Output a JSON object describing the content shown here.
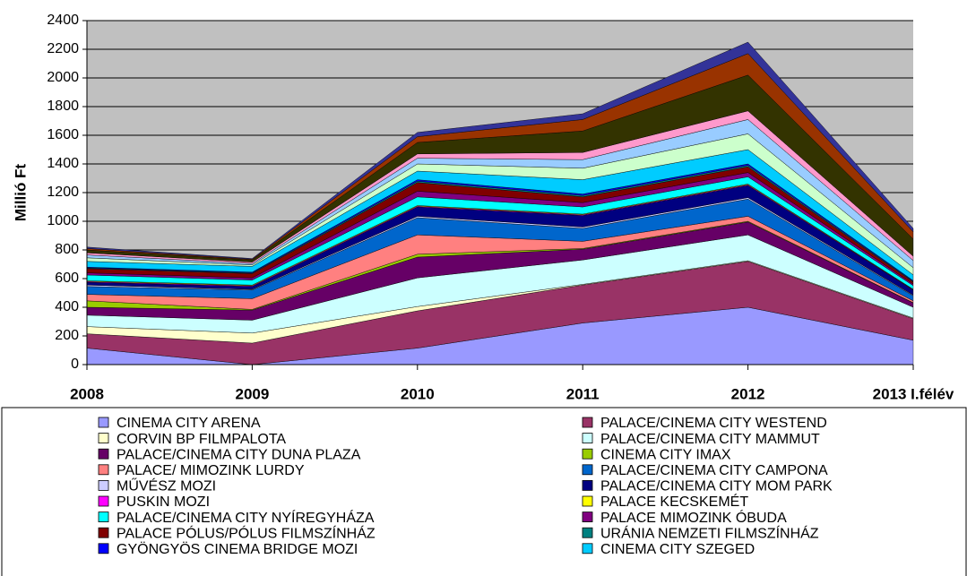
{
  "chart_data": {
    "type": "stacked_area",
    "y_label": "Millió Ft",
    "categories": [
      "2008",
      "2009",
      "2010",
      "2011",
      "2012",
      "2013 I.félév"
    ],
    "ylim": [
      0,
      2400
    ],
    "yticks": [
      0,
      200,
      400,
      600,
      800,
      1000,
      1200,
      1400,
      1600,
      1800,
      2000,
      2200,
      2400
    ],
    "grid": true,
    "series": [
      {
        "name": "CINEMA CITY ARENA",
        "color": "#9999ff",
        "values": [
          115,
          0,
          115,
          290,
          400,
          170
        ]
      },
      {
        "name": "PALACE/CINEMA CITY WESTEND",
        "color": "#993366",
        "values": [
          100,
          150,
          260,
          265,
          320,
          150
        ]
      },
      {
        "name": "CORVIN BP FILMPALOTA",
        "color": "#ffffcc",
        "values": [
          50,
          70,
          30,
          5,
          5,
          5
        ]
      },
      {
        "name": "PALACE/CINEMA CITY MAMMUT",
        "color": "#ccffff",
        "values": [
          80,
          90,
          200,
          170,
          180,
          75
        ]
      },
      {
        "name": "PALACE/CINEMA CITY DUNA PLAZA",
        "color": "#660066",
        "values": [
          55,
          70,
          145,
          75,
          90,
          30
        ]
      },
      {
        "name": "CINEMA CITY IMAX",
        "color": "#99cc00",
        "values": [
          45,
          5,
          20,
          5,
          5,
          2
        ]
      },
      {
        "name": "PALACE/ MIMOZINK LURDY",
        "color": "#ff8080",
        "values": [
          45,
          75,
          135,
          50,
          35,
          13
        ]
      },
      {
        "name": "PALACE/CINEMA CITY CAMPONA",
        "color": "#0066cc",
        "values": [
          55,
          60,
          120,
          90,
          120,
          35
        ]
      },
      {
        "name": "MŰVÉSZ MOZI",
        "color": "#ccccff",
        "values": [
          10,
          5,
          10,
          10,
          10,
          5
        ]
      },
      {
        "name": "PALACE/CINEMA CITY MOM PARK",
        "color": "#000080",
        "values": [
          20,
          20,
          65,
          80,
          85,
          35
        ]
      },
      {
        "name": "PUSKIN MOZI",
        "color": "#ff00ff",
        "values": [
          5,
          5,
          5,
          5,
          5,
          3
        ]
      },
      {
        "name": "PALACE KECSKEMÉT",
        "color": "#ffff00",
        "values": [
          5,
          5,
          5,
          5,
          5,
          3
        ]
      },
      {
        "name": "PALACE/CINEMA CITY NYÍREGYHÁZA",
        "color": "#00ffff",
        "values": [
          40,
          35,
          60,
          50,
          50,
          25
        ]
      },
      {
        "name": "PALACE MIMOZINK ÓBUDA",
        "color": "#800080",
        "values": [
          15,
          15,
          40,
          30,
          30,
          10
        ]
      },
      {
        "name": "PALACE PÓLUS/PÓLUS FILMSZÍNHÁZ",
        "color": "#800000",
        "values": [
          30,
          30,
          60,
          40,
          40,
          15
        ]
      },
      {
        "name": "URÁNIA NEMZETI FILMSZÍNHÁZ",
        "color": "#008080",
        "values": [
          5,
          5,
          10,
          10,
          10,
          5
        ]
      },
      {
        "name": "GYÖNGYÖS CINEMA BRIDGE MOZI",
        "color": "#0000ff",
        "values": [
          5,
          5,
          10,
          10,
          10,
          5
        ]
      },
      {
        "name": "CINEMA CITY SZEGED",
        "color": "#00ccff",
        "values": [
          40,
          40,
          60,
          100,
          100,
          40
        ]
      },
      {
        "color": "#ccffcc",
        "values": [
          25,
          10,
          50,
          80,
          110,
          50
        ]
      },
      {
        "color": "#99ccff",
        "values": [
          20,
          10,
          40,
          60,
          100,
          50
        ]
      },
      {
        "color": "#ff99cc",
        "values": [
          15,
          10,
          30,
          50,
          60,
          30
        ]
      },
      {
        "color": "#333300",
        "values": [
          20,
          15,
          80,
          150,
          250,
          120
        ]
      },
      {
        "color": "#993300",
        "values": [
          10,
          5,
          40,
          80,
          150,
          50
        ]
      },
      {
        "color": "#333399",
        "values": [
          10,
          5,
          30,
          40,
          80,
          24
        ]
      }
    ]
  }
}
